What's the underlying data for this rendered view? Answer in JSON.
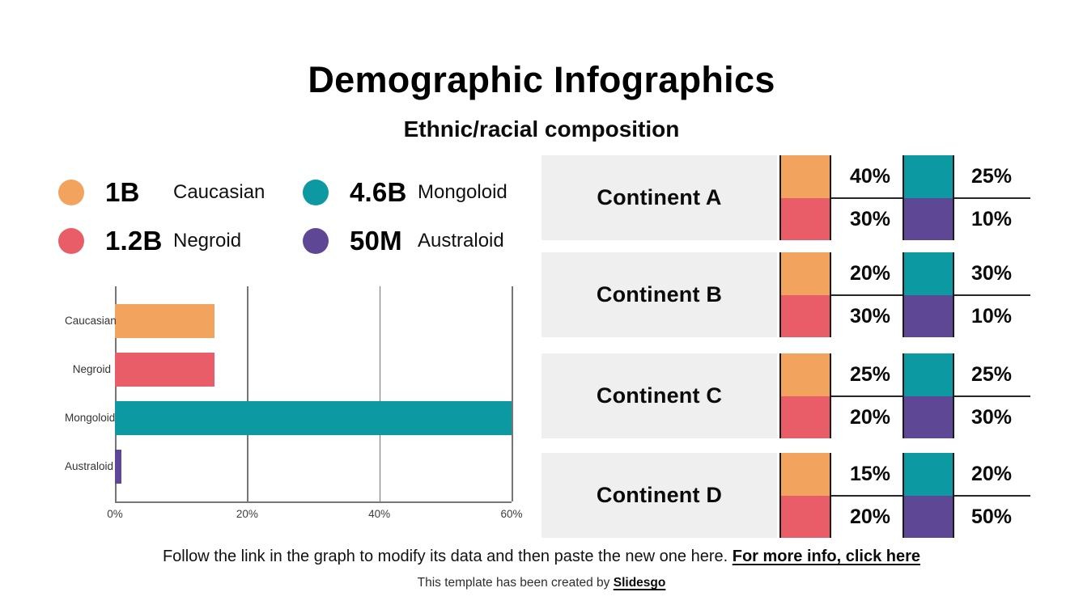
{
  "slide": {
    "title": "Demographic Infographics",
    "subtitle": "Ethnic/racial composition"
  },
  "colors": {
    "caucasian": "#F2A35E",
    "negroid": "#E95D68",
    "mongoloid": "#0D99A1",
    "australoid": "#5E4795",
    "row_bg": "#EFEFEF",
    "divider": "#262626",
    "grid": "#757575"
  },
  "legend": {
    "items": [
      {
        "value": "1B",
        "label": "Caucasian",
        "color": "#F2A35E"
      },
      {
        "value": "4.6B",
        "label": "Mongoloid",
        "color": "#0D99A1"
      },
      {
        "value": "1.2B",
        "label": "Negroid",
        "color": "#E95D68"
      },
      {
        "value": "50M",
        "label": "Australoid",
        "color": "#5E4795"
      }
    ]
  },
  "chart_data": {
    "type": "bar",
    "orientation": "horizontal",
    "title": "",
    "categories": [
      "Caucasian",
      "Negroid",
      "Mongoloid",
      "Australoid"
    ],
    "values": [
      15,
      15,
      60,
      1
    ],
    "unit": "%",
    "colors": [
      "#F2A35E",
      "#E95D68",
      "#0D99A1",
      "#5E4795"
    ],
    "xlabel": "",
    "ylabel": "",
    "xlim": [
      0,
      60
    ],
    "x_ticks": [
      "0%",
      "20%",
      "40%",
      "60%"
    ],
    "grid": "vertical gridlines at each x tick, no legend"
  },
  "table": {
    "rows": [
      {
        "name": "Continent A",
        "caucasian": "40%",
        "negroid": "30%",
        "mongoloid": "25%",
        "australoid": "10%"
      },
      {
        "name": "Continent B",
        "caucasian": "20%",
        "negroid": "30%",
        "mongoloid": "30%",
        "australoid": "10%"
      },
      {
        "name": "Continent C",
        "caucasian": "25%",
        "negroid": "20%",
        "mongoloid": "25%",
        "australoid": "30%"
      },
      {
        "name": "Continent D",
        "caucasian": "15%",
        "negroid": "20%",
        "mongoloid": "20%",
        "australoid": "50%"
      }
    ]
  },
  "footer": {
    "instruction": "Follow the link in the graph to modify its data and then paste the new one here. ",
    "more_info_link": "For more info, click here",
    "credit_prefix": "This template has been created by ",
    "credit_link": "Slidesgo"
  }
}
